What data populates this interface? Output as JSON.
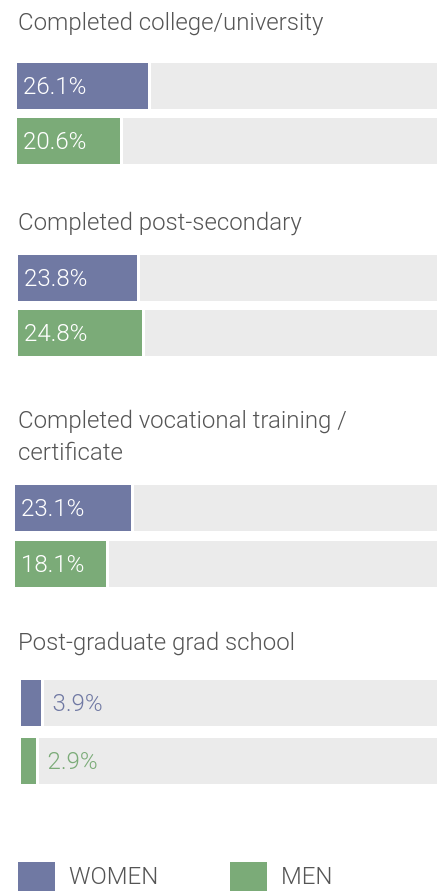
{
  "chart_data": {
    "type": "bar",
    "orientation": "horizontal",
    "categories": [
      "Completed college/university",
      "Completed post-secondary",
      "Completed vocational training / certificate",
      "Post-graduate grad school"
    ],
    "series": [
      {
        "name": "WOMEN",
        "color": "#7079a3",
        "values": [
          26.1,
          23.8,
          23.1,
          3.9
        ],
        "value_labels": [
          "26.1%",
          "23.8%",
          "23.1%",
          "3.9%"
        ]
      },
      {
        "name": "MEN",
        "color": "#7bab78",
        "values": [
          20.6,
          24.8,
          18.1,
          2.9
        ],
        "value_labels": [
          "20.6%",
          "24.8%",
          "18.1%",
          "2.9%"
        ]
      }
    ],
    "xlim": [
      0,
      84
    ],
    "track_color": "#ebebeb"
  }
}
